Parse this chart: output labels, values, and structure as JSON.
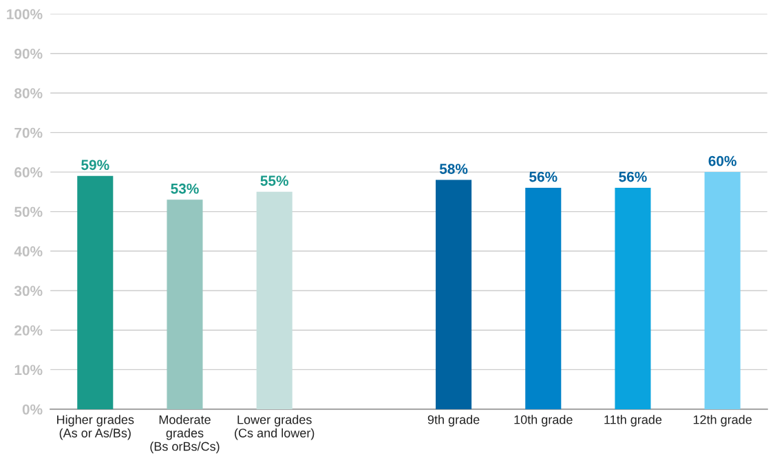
{
  "chart_data": {
    "type": "bar",
    "categories": [
      "Higher grades\n(As or As/Bs)",
      "Moderate\ngrades\n(Bs orBs/Cs)",
      "Lower grades\n(Cs and lower)",
      null,
      "9th grade",
      "10th grade",
      "11th grade",
      "12th grade"
    ],
    "series": [
      {
        "values": [
          59,
          53,
          55,
          null,
          null,
          null,
          null,
          null
        ],
        "colors": [
          "#1a9a8a",
          "#95c6bf",
          "#c5e0dd",
          null,
          null,
          null,
          null,
          null
        ],
        "value_labels": [
          "59%",
          "53%",
          "55%",
          null,
          null,
          null,
          null,
          null
        ]
      },
      {
        "values": [
          null,
          null,
          null,
          null,
          58,
          56,
          56,
          60
        ],
        "colors": [
          null,
          null,
          null,
          null,
          "#0063a0",
          "#0083c9",
          "#0aa3de",
          "#74d0f5"
        ],
        "value_labels": [
          null,
          null,
          null,
          null,
          "58%",
          "56%",
          "56%",
          "60%"
        ]
      }
    ],
    "ylim": [
      0,
      100
    ],
    "yticks": [
      {
        "value": 0,
        "label": "0%"
      },
      {
        "value": 10,
        "label": "10%"
      },
      {
        "value": 20,
        "label": "20%"
      },
      {
        "value": 30,
        "label": "30%"
      },
      {
        "value": 40,
        "label": "40%"
      },
      {
        "value": 50,
        "label": "50%"
      },
      {
        "value": 60,
        "label": "60%"
      },
      {
        "value": 70,
        "label": "70%"
      },
      {
        "value": 80,
        "label": "80%"
      },
      {
        "value": 90,
        "label": "90%"
      },
      {
        "value": 100,
        "label": "100%"
      }
    ],
    "grid": "y"
  }
}
